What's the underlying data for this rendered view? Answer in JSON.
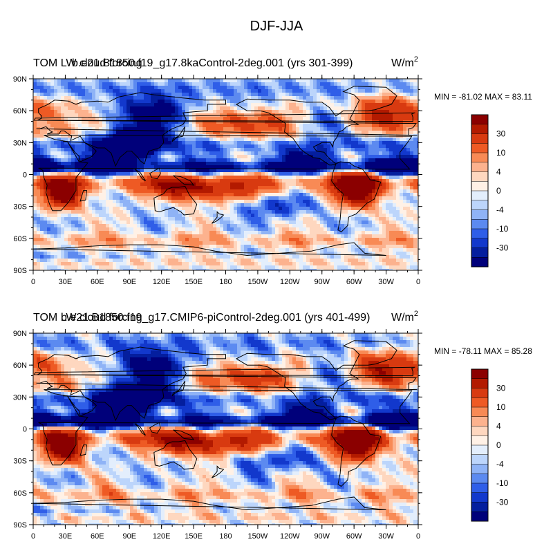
{
  "figure": {
    "title": "DJF-JJA"
  },
  "panels": [
    {
      "left_title": "TOM LW cloud forcing",
      "case_title": "b.e21.B1850.f19_g17.8kaControl-2deg.001 (yrs 301-399)",
      "units": "W/m",
      "units_sup": "2",
      "min_label": "MIN =",
      "min_value": "-81.02",
      "max_label": "MAX =",
      "max_value": "83.11"
    },
    {
      "left_title": "TOM LW cloud forcing",
      "case_title": "b.e21.B1850.f19_g17.CMIP6-piControl-2deg.001 (yrs 401-499)",
      "units": "W/m",
      "units_sup": "2",
      "min_label": "MIN =",
      "min_value": "-78.11",
      "max_label": "MAX =",
      "max_value": "85.28"
    }
  ],
  "axes": {
    "x_ticks": [
      "0",
      "30E",
      "60E",
      "90E",
      "120E",
      "150E",
      "180",
      "150W",
      "120W",
      "90W",
      "60W",
      "30W",
      "0"
    ],
    "y_ticks": [
      "90N",
      "60N",
      "30N",
      "0",
      "30S",
      "60S",
      "90S"
    ]
  },
  "colorbar": {
    "labels": [
      "30",
      "10",
      "4",
      "0",
      "-4",
      "-10",
      "-30"
    ],
    "colors_top_to_bottom": [
      "#8b0000",
      "#b31a00",
      "#d83a10",
      "#ee5a24",
      "#f88a55",
      "#fcb28e",
      "#fed7bf",
      "#fff1e6",
      "#e3eefc",
      "#bcd5fb",
      "#8fb3f6",
      "#5c8af0",
      "#2f5ee8",
      "#1238cc",
      "#041e9e",
      "#00007a"
    ]
  },
  "chart_data": {
    "type": "heatmap",
    "title": "DJF-JJA",
    "variable": "TOM LW cloud forcing",
    "units": "W/m2",
    "x_range_deg_east": [
      0,
      360
    ],
    "y_range_deg": [
      -90,
      90
    ],
    "panels": [
      {
        "case": "b.e21.B1850.f19_g17.8kaControl-2deg.001 (yrs 301-399)",
        "min": -81.02,
        "max": 83.11
      },
      {
        "case": "b.e21.B1850.f19_g17.CMIP6-piControl-2deg.001 (yrs 401-499)",
        "min": -78.11,
        "max": 85.28
      }
    ],
    "contour_levels": [
      -40,
      -30,
      -20,
      -15,
      -10,
      -7,
      -4,
      -2,
      0,
      2,
      4,
      7,
      10,
      15,
      20,
      30,
      40
    ],
    "features": [
      {
        "region": "South America (summer monsoon)",
        "sign": "positive",
        "magnitude": "> 40"
      },
      {
        "region": "Southern Africa",
        "sign": "positive",
        "magnitude": "> 40"
      },
      {
        "region": "Maritime Continent / northern Australia",
        "sign": "positive",
        "magnitude": "20-40"
      },
      {
        "region": "North Pacific storm track",
        "sign": "positive",
        "magnitude": "10-20"
      },
      {
        "region": "North Atlantic / Greenland",
        "sign": "positive",
        "magnitude": "10-30"
      },
      {
        "region": "Southern Ocean 60S band",
        "sign": "positive",
        "magnitude": "10-20"
      },
      {
        "region": "Tibet / South & East Asia",
        "sign": "negative",
        "magnitude": "< -40"
      },
      {
        "region": "ITCZ Pacific and Atlantic",
        "sign": "negative",
        "magnitude": "-20 to -40"
      },
      {
        "region": "Western Africa",
        "sign": "negative",
        "magnitude": "-20 to -40"
      }
    ]
  }
}
